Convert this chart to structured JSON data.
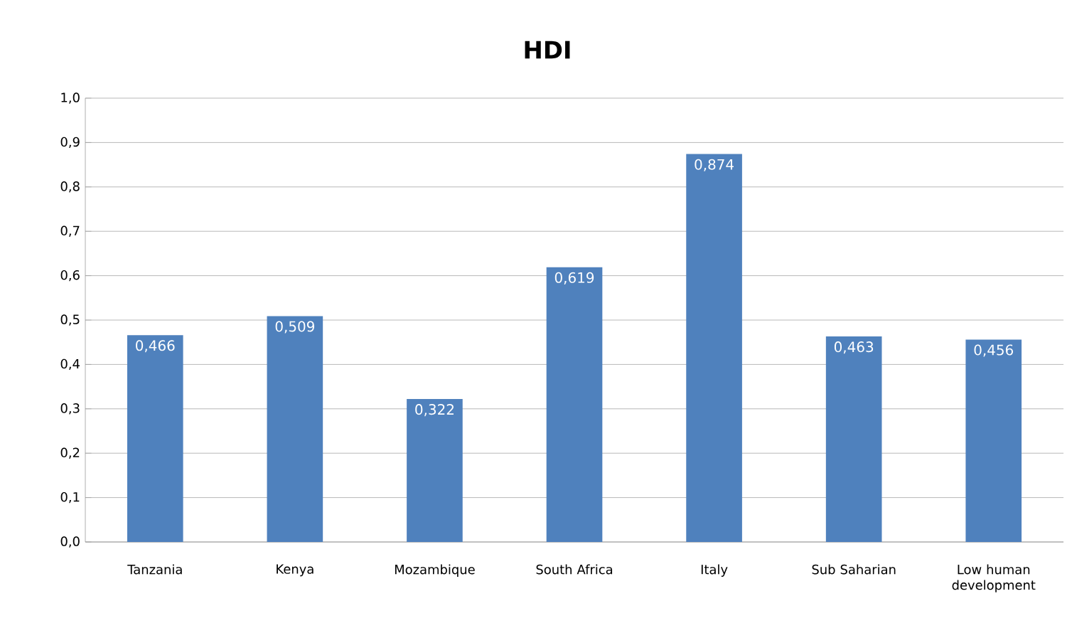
{
  "chart_data": {
    "type": "bar",
    "title": "HDI",
    "categories": [
      "Tanzania",
      "Kenya",
      "Mozambique",
      "South Africa",
      "Italy",
      "Sub Saharian",
      "Low human development"
    ],
    "values": [
      0.466,
      0.509,
      0.322,
      0.619,
      0.874,
      0.463,
      0.456
    ],
    "value_labels": [
      "0,466",
      "0,509",
      "0,322",
      "0,619",
      "0,874",
      "0,463",
      "0,456"
    ],
    "color": "#4f81bd",
    "ylim": [
      0,
      1
    ],
    "yticks": [
      {
        "value": 0,
        "label": "0,0"
      },
      {
        "value": 0.1,
        "label": "0,1"
      },
      {
        "value": 0.2,
        "label": "0,2"
      },
      {
        "value": 0.3,
        "label": "0,3"
      },
      {
        "value": 0.4,
        "label": "0,4"
      },
      {
        "value": 0.5,
        "label": "0,5"
      },
      {
        "value": 0.6,
        "label": "0,6"
      },
      {
        "value": 0.7,
        "label": "0,7"
      },
      {
        "value": 0.8,
        "label": "0,8"
      },
      {
        "value": 0.9,
        "label": "0,9"
      },
      {
        "value": 1,
        "label": "1,0"
      }
    ],
    "grid": "y"
  }
}
